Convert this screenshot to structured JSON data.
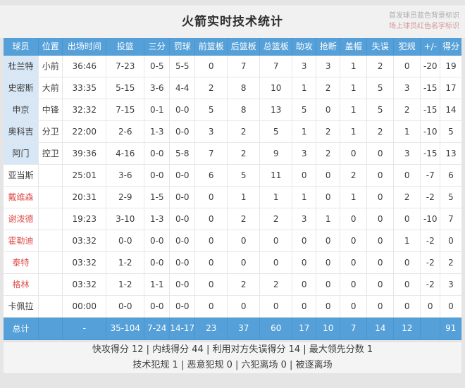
{
  "title": "火箭实时技术统计",
  "legend": {
    "line1": "首发球员蓝色背景标识",
    "line2": "场上球员红色名字标识"
  },
  "columns": [
    "球员",
    "位置",
    "出场时间",
    "投篮",
    "三分",
    "罚球",
    "前篮板",
    "后篮板",
    "总篮板",
    "助攻",
    "抢断",
    "盖帽",
    "失误",
    "犯规",
    "+/-",
    "得分"
  ],
  "players": [
    {
      "name": "杜兰特",
      "starter": true,
      "on_court": false,
      "stats": [
        "小前",
        "36:46",
        "7-23",
        "0-5",
        "5-5",
        "0",
        "7",
        "7",
        "3",
        "3",
        "1",
        "2",
        "0",
        "-20",
        "19"
      ]
    },
    {
      "name": "史密斯",
      "starter": true,
      "on_court": false,
      "stats": [
        "大前",
        "33:35",
        "5-15",
        "3-6",
        "4-4",
        "2",
        "8",
        "10",
        "1",
        "2",
        "1",
        "5",
        "3",
        "-15",
        "17"
      ]
    },
    {
      "name": "申京",
      "starter": true,
      "on_court": false,
      "stats": [
        "中锋",
        "32:32",
        "7-15",
        "0-1",
        "0-0",
        "5",
        "8",
        "13",
        "5",
        "0",
        "1",
        "5",
        "2",
        "-15",
        "14"
      ]
    },
    {
      "name": "奥科吉",
      "starter": true,
      "on_court": false,
      "stats": [
        "分卫",
        "22:00",
        "2-6",
        "1-3",
        "0-0",
        "3",
        "2",
        "5",
        "1",
        "2",
        "1",
        "2",
        "1",
        "-10",
        "5"
      ]
    },
    {
      "name": "阿门",
      "starter": true,
      "on_court": false,
      "stats": [
        "控卫",
        "39:36",
        "4-16",
        "0-0",
        "5-8",
        "7",
        "2",
        "9",
        "3",
        "2",
        "0",
        "0",
        "3",
        "-15",
        "13"
      ]
    },
    {
      "name": "亚当斯",
      "starter": false,
      "on_court": false,
      "stats": [
        "",
        "25:01",
        "3-6",
        "0-0",
        "0-0",
        "6",
        "5",
        "11",
        "0",
        "0",
        "2",
        "0",
        "0",
        "-7",
        "6"
      ]
    },
    {
      "name": "戴维森",
      "starter": false,
      "on_court": true,
      "stats": [
        "",
        "20:31",
        "2-9",
        "1-5",
        "0-0",
        "0",
        "1",
        "1",
        "1",
        "0",
        "1",
        "0",
        "2",
        "-2",
        "5"
      ]
    },
    {
      "name": "谢泼德",
      "starter": false,
      "on_court": true,
      "stats": [
        "",
        "19:23",
        "3-10",
        "1-3",
        "0-0",
        "0",
        "2",
        "2",
        "3",
        "1",
        "0",
        "0",
        "0",
        "-10",
        "7"
      ]
    },
    {
      "name": "霍勒迪",
      "starter": false,
      "on_court": true,
      "stats": [
        "",
        "03:32",
        "0-0",
        "0-0",
        "0-0",
        "0",
        "0",
        "0",
        "0",
        "0",
        "0",
        "0",
        "1",
        "-2",
        "0"
      ]
    },
    {
      "name": "泰特",
      "starter": false,
      "on_court": true,
      "stats": [
        "",
        "03:32",
        "1-2",
        "0-0",
        "0-0",
        "0",
        "0",
        "0",
        "0",
        "0",
        "0",
        "0",
        "0",
        "-2",
        "2"
      ]
    },
    {
      "name": "格林",
      "starter": false,
      "on_court": true,
      "stats": [
        "",
        "03:32",
        "1-2",
        "1-1",
        "0-0",
        "0",
        "2",
        "2",
        "0",
        "0",
        "0",
        "0",
        "0",
        "-2",
        "3"
      ]
    },
    {
      "name": "卡佩拉",
      "starter": false,
      "on_court": false,
      "stats": [
        "",
        "00:00",
        "0-0",
        "0-0",
        "0-0",
        "0",
        "0",
        "0",
        "0",
        "0",
        "0",
        "0",
        "0",
        "0",
        "0"
      ]
    }
  ],
  "total": {
    "name": "总计",
    "stats": [
      "",
      "-",
      "35-104",
      "7-24",
      "14-17",
      "23",
      "37",
      "60",
      "17",
      "10",
      "7",
      "14",
      "12",
      "",
      "91"
    ]
  },
  "footer": {
    "line1": "快攻得分 12 | 内线得分 44 | 利用对方失误得分 14 | 最大领先分数 1",
    "line2": "技术犯规 1 | 恶意犯规 0 | 六犯离场 0 | 被逐离场"
  },
  "colors": {
    "header_blue": "#55a0d8",
    "starter_name_bg": "#d8e7f5",
    "on_court_name_red": "#e04f4f",
    "total_row_blue": "#55a0d8",
    "legend_gray": "#adadad",
    "legend_red": "#d69595"
  }
}
